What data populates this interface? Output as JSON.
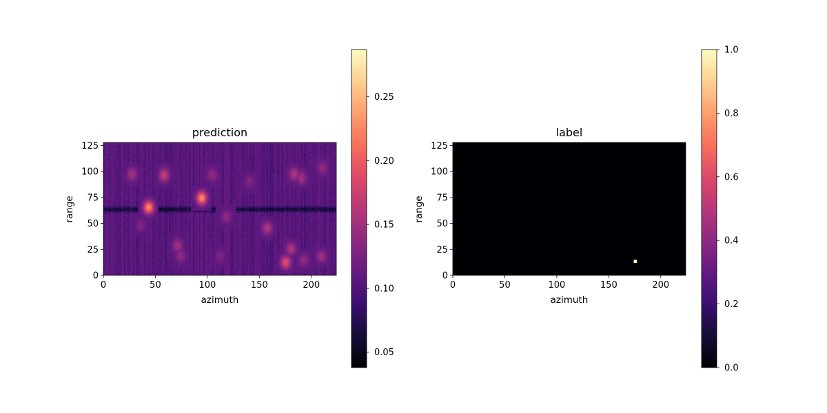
{
  "colormap": "magma",
  "chart_data": [
    {
      "type": "heatmap",
      "title": "prediction",
      "xlabel": "azimuth",
      "ylabel": "range",
      "xlim": [
        0,
        224
      ],
      "ylim": [
        0,
        128
      ],
      "xticks": [
        "0",
        "50",
        "100",
        "150",
        "200"
      ],
      "yticks": [
        "0",
        "25",
        "50",
        "75",
        "100",
        "125"
      ],
      "colorbar": {
        "range": [
          0.038,
          0.287
        ],
        "ticks": [
          "0.05",
          "0.10",
          "0.15",
          "0.20",
          "0.25"
        ]
      },
      "background_value": 0.105,
      "dark_band": {
        "range_center": 63,
        "value": 0.06
      },
      "hotspots": [
        {
          "azimuth": 43,
          "range": 65,
          "value": 0.23
        },
        {
          "azimuth": 94,
          "range": 74,
          "value": 0.23
        },
        {
          "azimuth": 58,
          "range": 96,
          "value": 0.17
        },
        {
          "azimuth": 27,
          "range": 97,
          "value": 0.15
        },
        {
          "azimuth": 183,
          "range": 97,
          "value": 0.16
        },
        {
          "azimuth": 190,
          "range": 93,
          "value": 0.15
        },
        {
          "azimuth": 210,
          "range": 103,
          "value": 0.14
        },
        {
          "azimuth": 104,
          "range": 96,
          "value": 0.14
        },
        {
          "azimuth": 71,
          "range": 28,
          "value": 0.15
        },
        {
          "azimuth": 74,
          "range": 18,
          "value": 0.14
        },
        {
          "azimuth": 112,
          "range": 18,
          "value": 0.13
        },
        {
          "azimuth": 157,
          "range": 45,
          "value": 0.16
        },
        {
          "azimuth": 175,
          "range": 12,
          "value": 0.19
        },
        {
          "azimuth": 180,
          "range": 25,
          "value": 0.16
        },
        {
          "azimuth": 192,
          "range": 14,
          "value": 0.14
        },
        {
          "azimuth": 209,
          "range": 18,
          "value": 0.15
        },
        {
          "azimuth": 118,
          "range": 56,
          "value": 0.14
        },
        {
          "azimuth": 35,
          "range": 48,
          "value": 0.13
        },
        {
          "azimuth": 140,
          "range": 90,
          "value": 0.13
        }
      ]
    },
    {
      "type": "heatmap",
      "title": "label",
      "xlabel": "azimuth",
      "ylabel": "range",
      "xlim": [
        0,
        224
      ],
      "ylim": [
        0,
        128
      ],
      "xticks": [
        "0",
        "50",
        "100",
        "150",
        "200"
      ],
      "yticks": [
        "0",
        "25",
        "50",
        "75",
        "100",
        "125"
      ],
      "colorbar": {
        "range": [
          0.0,
          1.0
        ],
        "ticks": [
          "0.0",
          "0.2",
          "0.4",
          "0.6",
          "0.8",
          "1.0"
        ]
      },
      "background_value": 0.0,
      "hotspots": [
        {
          "azimuth": 175,
          "range": 13,
          "value": 1.0
        }
      ]
    }
  ]
}
